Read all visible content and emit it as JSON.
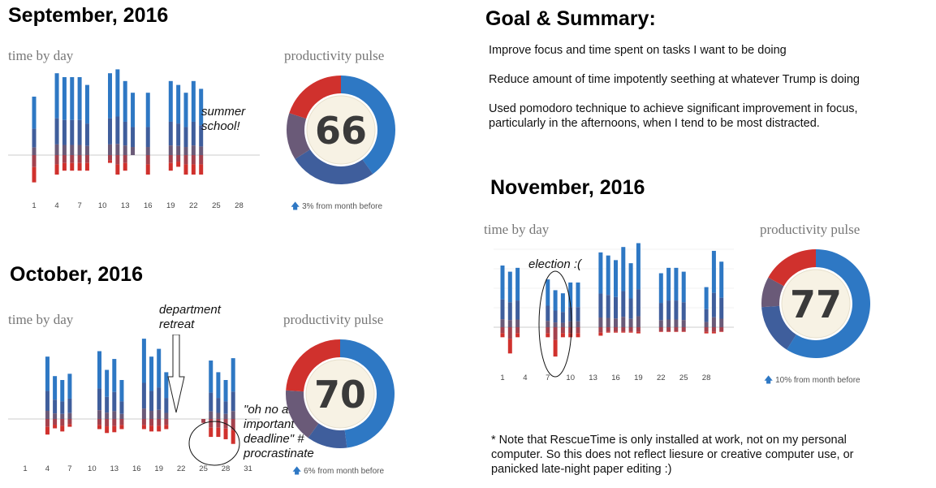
{
  "summary": {
    "title": "Goal & Summary:",
    "items": [
      "Improve focus and time spent on tasks I want to be doing",
      "Reduce amount of time impotently seething at whatever Trump is doing",
      "Used pomodoro technique to achieve significant improvement in focus, particularly in the afternoons, when I tend to be most distracted."
    ]
  },
  "note": "* Note that RescueTime is only installed at work, not on my personal computer. So this does not reflect liesure or creative computer use, or panicked late-night paper editing :)",
  "colors": {
    "very_productive": "#2e78c4",
    "productive": "#3f5e9c",
    "neutral": "#6a5a78",
    "distracting": "#a4414d",
    "very_distracting": "#d0312d",
    "axis": "#cccccc",
    "score_bg": "#f7f2e4"
  },
  "months": [
    {
      "title": "September, 2016",
      "time_label": "time by day",
      "pulse_label": "productivity pulse",
      "pulse_score": "66",
      "delta_text": "3% from month before",
      "annotations": [
        "summer school!"
      ]
    },
    {
      "title": "October, 2016",
      "time_label": "time by day",
      "pulse_label": "productivity pulse",
      "pulse_score": "70",
      "delta_text": "6% from month before",
      "annotations": [
        "department retreat",
        "\"oh no an important deadline\" # procrastinate"
      ]
    },
    {
      "title": "November, 2016",
      "time_label": "time by day",
      "pulse_label": "productivity pulse",
      "pulse_score": "77",
      "delta_text": "10% from month before",
      "annotations": [
        "election :("
      ]
    }
  ],
  "chart_data": [
    {
      "type": "bar",
      "title": "September, 2016 — time by day",
      "x_tick_labels": [
        "1",
        "4",
        "7",
        "10",
        "13",
        "16",
        "19",
        "22",
        "25",
        "28"
      ],
      "x": [
        1,
        2,
        3,
        4,
        5,
        6,
        7,
        8,
        9,
        10,
        11,
        12,
        13,
        14,
        15,
        16,
        17,
        18,
        19,
        20,
        21,
        22,
        23,
        24,
        25,
        26,
        27,
        28,
        29,
        30
      ],
      "series": [
        {
          "name": "productive",
          "values": [
            7.5,
            0,
            0,
            10.5,
            10,
            10,
            10,
            9,
            0,
            0,
            10.5,
            11,
            9.5,
            8,
            0,
            8,
            0,
            0,
            9.5,
            9,
            8,
            9.5,
            8.5,
            0,
            0,
            0,
            0,
            0,
            0,
            0
          ]
        },
        {
          "name": "distracting",
          "values": [
            3.5,
            0,
            0,
            2.5,
            2,
            2,
            2,
            2,
            0,
            0,
            1,
            2.5,
            2,
            0,
            0,
            2.5,
            0,
            0,
            2,
            1.5,
            2.5,
            2.5,
            2.5,
            0,
            0,
            0,
            0,
            0,
            0,
            0
          ]
        }
      ]
    },
    {
      "type": "pie",
      "title": "productivity pulse",
      "categories": [
        "very productive",
        "productive",
        "neutral",
        "very distracting"
      ],
      "values": [
        40,
        26,
        14,
        20
      ],
      "score": 66
    },
    {
      "type": "bar",
      "title": "October, 2016 — time by day",
      "x_tick_labels": [
        "1",
        "4",
        "7",
        "10",
        "13",
        "16",
        "19",
        "22",
        "25",
        "28",
        "31"
      ],
      "x": [
        1,
        2,
        3,
        4,
        5,
        6,
        7,
        8,
        9,
        10,
        11,
        12,
        13,
        14,
        15,
        16,
        17,
        18,
        19,
        20,
        21,
        22,
        23,
        24,
        25,
        26,
        27,
        28,
        29,
        30,
        31
      ],
      "series": [
        {
          "name": "productive",
          "values": [
            0,
            0,
            0,
            8,
            5.5,
            5,
            5.8,
            0,
            0,
            0,
            8.7,
            6.3,
            7.7,
            5,
            0,
            0,
            10.3,
            8,
            9,
            6,
            0,
            0,
            0,
            0,
            0,
            7.5,
            6,
            5,
            7.8,
            0,
            0
          ]
        },
        {
          "name": "distracting",
          "values": [
            0,
            0,
            0,
            2,
            1.2,
            1.6,
            1,
            0,
            0,
            0,
            1.3,
            1.8,
            1.7,
            1.3,
            0,
            0,
            1.3,
            1.6,
            1.6,
            1.3,
            0,
            0,
            0,
            0,
            0.5,
            2.3,
            2.3,
            2.6,
            3.2,
            0,
            0
          ]
        }
      ]
    },
    {
      "type": "pie",
      "title": "productivity pulse",
      "categories": [
        "very productive",
        "productive",
        "neutral",
        "very distracting"
      ],
      "values": [
        48,
        12,
        16,
        24
      ],
      "score": 70
    },
    {
      "type": "bar",
      "title": "November, 2016 — time by day",
      "x_tick_labels": [
        "1",
        "4",
        "7",
        "10",
        "13",
        "16",
        "19",
        "22",
        "25",
        "28"
      ],
      "x": [
        1,
        2,
        3,
        4,
        5,
        6,
        7,
        8,
        9,
        10,
        11,
        12,
        13,
        14,
        15,
        16,
        17,
        18,
        19,
        20,
        21,
        22,
        23,
        24,
        25,
        26,
        27,
        28,
        29,
        30
      ],
      "series": [
        {
          "name": "productive",
          "values": [
            8,
            7.2,
            7.7,
            0,
            0,
            0,
            6.2,
            4.8,
            4.4,
            5.8,
            5.8,
            0,
            0,
            9.7,
            9.3,
            8.7,
            10.4,
            8.3,
            10.9,
            0,
            0,
            7,
            7.7,
            7.7,
            7.2,
            0,
            0,
            5.2,
            9.9,
            8.5
          ]
        },
        {
          "name": "distracting",
          "values": [
            1.3,
            3.4,
            1.3,
            0,
            0,
            0,
            1.3,
            3.8,
            1.3,
            1.3,
            1.3,
            0,
            0,
            1.1,
            0.7,
            0.7,
            0.7,
            0.7,
            0.8,
            0,
            0,
            0.6,
            0.6,
            0.6,
            0.6,
            0,
            0,
            0.8,
            0.8,
            0.6
          ]
        }
      ]
    },
    {
      "type": "pie",
      "title": "productivity pulse",
      "categories": [
        "very productive",
        "productive",
        "neutral",
        "very distracting"
      ],
      "values": [
        59,
        15,
        9,
        17
      ],
      "score": 77
    }
  ]
}
